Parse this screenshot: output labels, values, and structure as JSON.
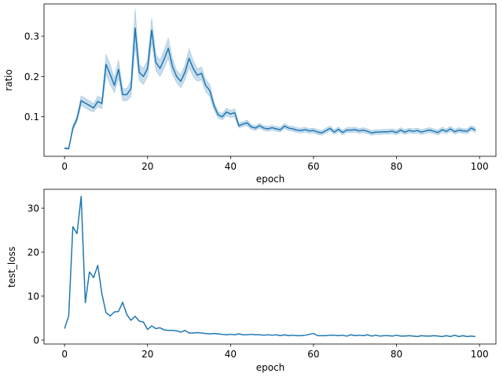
{
  "chart_data": [
    {
      "type": "line",
      "title": "",
      "xlabel": "epoch",
      "ylabel": "ratio",
      "xlim": [
        -4.95,
        103.95
      ],
      "ylim": [
        0.002,
        0.38
      ],
      "xticks": [
        0,
        20,
        40,
        60,
        80,
        100
      ],
      "yticks": [
        0.1,
        0.2,
        0.3
      ],
      "ytick_labels": [
        "0.1",
        "0.2",
        "0.3"
      ],
      "grid": false,
      "line_color": "#1f77b4",
      "band_color": "#1f77b4",
      "series": [
        {
          "x": [
            0,
            1,
            2,
            3,
            4,
            5,
            6,
            7,
            8,
            9,
            10,
            11,
            12,
            13,
            14,
            15,
            16,
            17,
            18,
            19,
            20,
            21,
            22,
            23,
            24,
            25,
            26,
            27,
            28,
            29,
            30,
            31,
            32,
            33,
            34,
            35,
            36,
            37,
            38,
            39,
            40,
            41,
            42,
            43,
            44,
            45,
            46,
            47,
            48,
            49,
            50,
            51,
            52,
            53,
            54,
            55,
            56,
            57,
            58,
            59,
            60,
            61,
            62,
            63,
            64,
            65,
            66,
            67,
            68,
            69,
            70,
            71,
            72,
            73,
            74,
            75,
            76,
            77,
            78,
            79,
            80,
            81,
            82,
            83,
            84,
            85,
            86,
            87,
            88,
            89,
            90,
            91,
            92,
            93,
            94,
            95,
            96,
            97,
            98,
            99
          ],
          "values": [
            0.022,
            0.021,
            0.072,
            0.095,
            0.14,
            0.134,
            0.128,
            0.122,
            0.138,
            0.133,
            0.23,
            0.205,
            0.178,
            0.218,
            0.155,
            0.155,
            0.17,
            0.32,
            0.21,
            0.2,
            0.22,
            0.315,
            0.235,
            0.22,
            0.243,
            0.27,
            0.225,
            0.2,
            0.188,
            0.21,
            0.245,
            0.22,
            0.203,
            0.208,
            0.178,
            0.165,
            0.128,
            0.105,
            0.1,
            0.112,
            0.107,
            0.11,
            0.078,
            0.082,
            0.085,
            0.075,
            0.072,
            0.078,
            0.072,
            0.07,
            0.073,
            0.07,
            0.068,
            0.077,
            0.072,
            0.07,
            0.067,
            0.066,
            0.068,
            0.065,
            0.066,
            0.062,
            0.06,
            0.066,
            0.071,
            0.062,
            0.069,
            0.061,
            0.067,
            0.067,
            0.068,
            0.065,
            0.067,
            0.064,
            0.06,
            0.062,
            0.062,
            0.063,
            0.063,
            0.064,
            0.061,
            0.067,
            0.062,
            0.066,
            0.064,
            0.066,
            0.062,
            0.065,
            0.067,
            0.064,
            0.061,
            0.068,
            0.064,
            0.07,
            0.063,
            0.067,
            0.065,
            0.064,
            0.072,
            0.067
          ],
          "lower": [
            0.02,
            0.019,
            0.065,
            0.088,
            0.128,
            0.122,
            0.116,
            0.112,
            0.125,
            0.12,
            0.205,
            0.18,
            0.16,
            0.195,
            0.14,
            0.14,
            0.15,
            0.275,
            0.19,
            0.18,
            0.2,
            0.285,
            0.215,
            0.2,
            0.22,
            0.245,
            0.205,
            0.185,
            0.172,
            0.192,
            0.222,
            0.2,
            0.188,
            0.192,
            0.163,
            0.15,
            0.118,
            0.097,
            0.092,
            0.103,
            0.098,
            0.1,
            0.072,
            0.076,
            0.078,
            0.069,
            0.066,
            0.072,
            0.066,
            0.064,
            0.067,
            0.064,
            0.062,
            0.071,
            0.066,
            0.064,
            0.061,
            0.06,
            0.062,
            0.059,
            0.06,
            0.056,
            0.054,
            0.06,
            0.065,
            0.056,
            0.063,
            0.055,
            0.061,
            0.061,
            0.062,
            0.059,
            0.061,
            0.058,
            0.054,
            0.056,
            0.056,
            0.057,
            0.057,
            0.058,
            0.055,
            0.061,
            0.056,
            0.06,
            0.058,
            0.06,
            0.056,
            0.059,
            0.061,
            0.058,
            0.055,
            0.062,
            0.058,
            0.064,
            0.057,
            0.061,
            0.059,
            0.058,
            0.066,
            0.061
          ],
          "upper": [
            0.024,
            0.023,
            0.079,
            0.102,
            0.152,
            0.146,
            0.14,
            0.132,
            0.151,
            0.146,
            0.255,
            0.23,
            0.196,
            0.241,
            0.17,
            0.17,
            0.19,
            0.368,
            0.23,
            0.22,
            0.24,
            0.345,
            0.255,
            0.24,
            0.266,
            0.295,
            0.245,
            0.215,
            0.204,
            0.228,
            0.268,
            0.24,
            0.218,
            0.224,
            0.193,
            0.18,
            0.138,
            0.113,
            0.108,
            0.121,
            0.116,
            0.12,
            0.084,
            0.088,
            0.092,
            0.081,
            0.078,
            0.084,
            0.078,
            0.076,
            0.079,
            0.076,
            0.074,
            0.083,
            0.078,
            0.076,
            0.073,
            0.072,
            0.074,
            0.071,
            0.072,
            0.068,
            0.066,
            0.072,
            0.077,
            0.068,
            0.075,
            0.067,
            0.073,
            0.073,
            0.074,
            0.071,
            0.073,
            0.07,
            0.066,
            0.068,
            0.068,
            0.069,
            0.069,
            0.07,
            0.067,
            0.073,
            0.068,
            0.072,
            0.07,
            0.072,
            0.068,
            0.071,
            0.073,
            0.07,
            0.067,
            0.074,
            0.07,
            0.076,
            0.069,
            0.073,
            0.071,
            0.07,
            0.078,
            0.073
          ]
        }
      ]
    },
    {
      "type": "line",
      "title": "",
      "xlabel": "epoch",
      "ylabel": "test_loss",
      "xlim": [
        -4.95,
        103.95
      ],
      "ylim": [
        -0.9,
        34.3
      ],
      "xticks": [
        0,
        20,
        40,
        60,
        80,
        100
      ],
      "yticks": [
        0,
        10,
        20,
        30
      ],
      "ytick_labels": [
        "0",
        "10",
        "20",
        "30"
      ],
      "grid": false,
      "line_color": "#1f77b4",
      "series": [
        {
          "x": [
            0,
            1,
            2,
            3,
            4,
            5,
            6,
            7,
            8,
            9,
            10,
            11,
            12,
            13,
            14,
            15,
            16,
            17,
            18,
            19,
            20,
            21,
            22,
            23,
            24,
            25,
            26,
            27,
            28,
            29,
            30,
            31,
            32,
            33,
            34,
            35,
            36,
            37,
            38,
            39,
            40,
            41,
            42,
            43,
            44,
            45,
            46,
            47,
            48,
            49,
            50,
            51,
            52,
            53,
            54,
            55,
            56,
            57,
            58,
            59,
            60,
            61,
            62,
            63,
            64,
            65,
            66,
            67,
            68,
            69,
            70,
            71,
            72,
            73,
            74,
            75,
            76,
            77,
            78,
            79,
            80,
            81,
            82,
            83,
            84,
            85,
            86,
            87,
            88,
            89,
            90,
            91,
            92,
            93,
            94,
            95,
            96,
            97,
            98,
            99
          ],
          "values": [
            2.6,
            5.5,
            25.8,
            24.2,
            32.7,
            8.5,
            15.5,
            14.2,
            17.0,
            10.5,
            6.2,
            5.5,
            6.4,
            6.5,
            8.6,
            5.8,
            4.5,
            5.4,
            4.3,
            4.1,
            2.4,
            3.2,
            2.6,
            2.8,
            2.3,
            2.2,
            2.2,
            2.1,
            1.8,
            2.2,
            1.6,
            1.6,
            1.7,
            1.6,
            1.5,
            1.4,
            1.5,
            1.4,
            1.3,
            1.2,
            1.3,
            1.2,
            1.4,
            1.2,
            1.2,
            1.3,
            1.2,
            1.2,
            1.1,
            1.2,
            1.1,
            1.2,
            1.0,
            1.2,
            1.0,
            1.1,
            1.0,
            1.0,
            1.1,
            1.3,
            1.5,
            1.0,
            1.0,
            1.0,
            1.1,
            1.1,
            1.0,
            1.1,
            0.9,
            1.2,
            1.0,
            1.1,
            1.0,
            1.2,
            0.9,
            1.1,
            0.9,
            1.0,
            1.0,
            0.9,
            1.1,
            0.9,
            0.9,
            1.0,
            0.9,
            0.8,
            1.0,
            0.9,
            0.9,
            1.0,
            0.9,
            0.8,
            1.0,
            0.8,
            1.1,
            0.8,
            1.0,
            0.8,
            0.9,
            0.8
          ]
        }
      ]
    }
  ]
}
